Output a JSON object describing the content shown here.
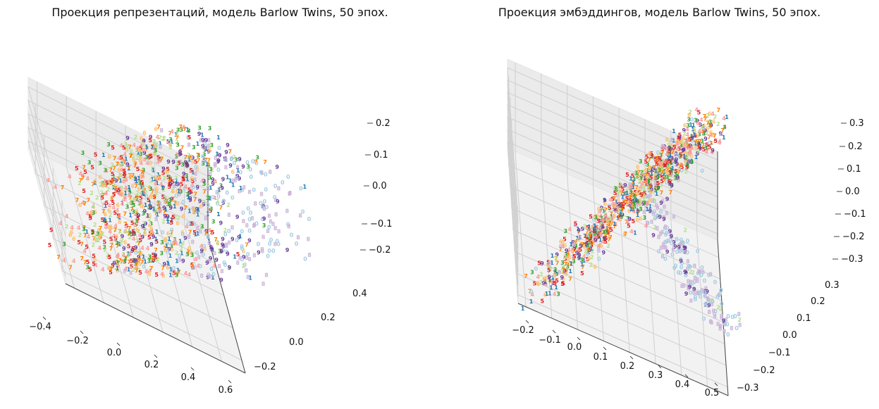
{
  "chart_data": [
    {
      "type": "scatter",
      "title": "Проекция репрезентаций, модель Barlow Twins, 50 эпох.",
      "projection": "3d",
      "grid": true,
      "x_ticks": [
        "−0.4",
        "−0.2",
        "0.0",
        "0.2",
        "0.4",
        "0.6"
      ],
      "y_ticks": [
        "−0.2",
        "0.0",
        "0.2",
        "0.4"
      ],
      "z_ticks": [
        "−0.2",
        "−0.1",
        "0.0",
        "0.1",
        "0.2"
      ],
      "xlim": [
        -0.45,
        0.65
      ],
      "ylim": [
        -0.32,
        0.52
      ],
      "zlim": [
        -0.25,
        0.23
      ],
      "series": [
        {
          "name": "0",
          "color": "#a6cee3"
        },
        {
          "name": "1",
          "color": "#1f78b4"
        },
        {
          "name": "2",
          "color": "#b2df8a"
        },
        {
          "name": "3",
          "color": "#33a02c"
        },
        {
          "name": "4",
          "color": "#fb9a99"
        },
        {
          "name": "5",
          "color": "#e31a1c"
        },
        {
          "name": "6",
          "color": "#fdbf6f"
        },
        {
          "name": "7",
          "color": "#ff7f00"
        },
        {
          "name": "8",
          "color": "#cab2d6"
        },
        {
          "name": "9",
          "color": "#6a3d9a"
        }
      ]
    },
    {
      "type": "scatter",
      "title": "Проекция эмбэддингов, модель Barlow Twins, 50 эпох.",
      "projection": "3d",
      "grid": true,
      "x_ticks": [
        "−0.2",
        "−0.1",
        "0.0",
        "0.1",
        "0.2",
        "0.3",
        "0.4",
        "0.5"
      ],
      "y_ticks": [
        "−0.3",
        "−0.2",
        "−0.1",
        "0.0",
        "0.1",
        "0.2",
        "0.3"
      ],
      "z_ticks": [
        "−0.3",
        "−0.2",
        "−0.1",
        "0.0",
        "0.1",
        "0.2",
        "0.3"
      ],
      "xlim": [
        -0.25,
        0.52
      ],
      "ylim": [
        -0.32,
        0.34
      ],
      "zlim": [
        -0.32,
        0.35
      ],
      "series": [
        {
          "name": "0",
          "color": "#a6cee3"
        },
        {
          "name": "1",
          "color": "#1f78b4"
        },
        {
          "name": "2",
          "color": "#b2df8a"
        },
        {
          "name": "3",
          "color": "#33a02c"
        },
        {
          "name": "4",
          "color": "#fb9a99"
        },
        {
          "name": "5",
          "color": "#e31a1c"
        },
        {
          "name": "6",
          "color": "#fdbf6f"
        },
        {
          "name": "7",
          "color": "#ff7f00"
        },
        {
          "name": "8",
          "color": "#cab2d6"
        },
        {
          "name": "9",
          "color": "#6a3d9a"
        }
      ]
    }
  ]
}
